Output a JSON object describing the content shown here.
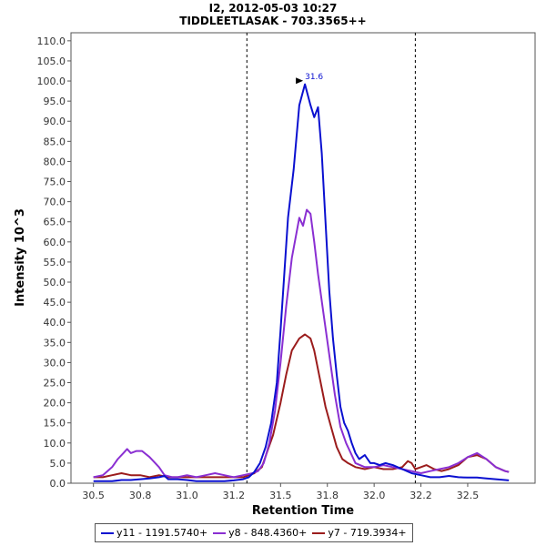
{
  "chart_data": {
    "type": "line",
    "title": "I2, 2012-05-03 10:27",
    "subtitle": "TIDDLEETLASAK - 703.3565++",
    "xlabel": "Retention Time",
    "ylabel": "Intensity 10^3",
    "xlim": [
      30.38,
      32.86
    ],
    "ylim": [
      0,
      112
    ],
    "x_ticks": [
      "30.5",
      "30.8",
      "31.0",
      "31.2",
      "31.5",
      "31.8",
      "32.0",
      "32.2",
      "32.5"
    ],
    "x_tick_values": [
      30.5,
      30.75,
      31.0,
      31.25,
      31.5,
      31.75,
      32.0,
      32.25,
      32.5
    ],
    "y_ticks": [
      "0.0",
      "5.0",
      "10.0",
      "15.0",
      "20.0",
      "25.0",
      "30.0",
      "35.0",
      "40.0",
      "45.0",
      "50.0",
      "55.0",
      "60.0",
      "65.0",
      "70.0",
      "75.0",
      "80.0",
      "85.0",
      "90.0",
      "95.0",
      "100.0",
      "105.0",
      "110.0"
    ],
    "y_tick_values": [
      0,
      5,
      10,
      15,
      20,
      25,
      30,
      35,
      40,
      45,
      50,
      55,
      60,
      65,
      70,
      75,
      80,
      85,
      90,
      95,
      100,
      105,
      110
    ],
    "boundaries": [
      31.32,
      32.22
    ],
    "peak_annotation": {
      "label": "31.6",
      "x": 31.64,
      "y": 99.5
    },
    "legend_position": "bottom",
    "series": [
      {
        "name": "y11 - 1191.5740+",
        "color": "#0a10d0",
        "points": [
          [
            30.5,
            0.5
          ],
          [
            30.55,
            0.5
          ],
          [
            30.6,
            0.5
          ],
          [
            30.65,
            0.8
          ],
          [
            30.7,
            0.8
          ],
          [
            30.75,
            1
          ],
          [
            30.8,
            1.2
          ],
          [
            30.85,
            1.5
          ],
          [
            30.88,
            1.8
          ],
          [
            30.9,
            1
          ],
          [
            30.95,
            1
          ],
          [
            31.0,
            0.8
          ],
          [
            31.05,
            0.5
          ],
          [
            31.1,
            0.5
          ],
          [
            31.15,
            0.5
          ],
          [
            31.2,
            0.5
          ],
          [
            31.25,
            0.7
          ],
          [
            31.3,
            1
          ],
          [
            31.33,
            1.5
          ],
          [
            31.36,
            2.8
          ],
          [
            31.39,
            5
          ],
          [
            31.42,
            9
          ],
          [
            31.45,
            15
          ],
          [
            31.48,
            25
          ],
          [
            31.5,
            38
          ],
          [
            31.52,
            52
          ],
          [
            31.54,
            66
          ],
          [
            31.57,
            78
          ],
          [
            31.6,
            94
          ],
          [
            31.63,
            99.2
          ],
          [
            31.66,
            94
          ],
          [
            31.68,
            91
          ],
          [
            31.7,
            93.5
          ],
          [
            31.72,
            82
          ],
          [
            31.74,
            65
          ],
          [
            31.76,
            48
          ],
          [
            31.78,
            36
          ],
          [
            31.8,
            27
          ],
          [
            31.82,
            19
          ],
          [
            31.84,
            15
          ],
          [
            31.86,
            13
          ],
          [
            31.88,
            10
          ],
          [
            31.9,
            7.5
          ],
          [
            31.92,
            6
          ],
          [
            31.95,
            7
          ],
          [
            31.98,
            5
          ],
          [
            32.0,
            5
          ],
          [
            32.03,
            4.5
          ],
          [
            32.06,
            5
          ],
          [
            32.1,
            4.5
          ],
          [
            32.15,
            3.5
          ],
          [
            32.2,
            2.5
          ],
          [
            32.25,
            2
          ],
          [
            32.3,
            1.5
          ],
          [
            32.35,
            1.5
          ],
          [
            32.4,
            1.8
          ],
          [
            32.45,
            1.5
          ],
          [
            32.5,
            1.4
          ],
          [
            32.55,
            1.4
          ],
          [
            32.6,
            1.2
          ],
          [
            32.65,
            1
          ],
          [
            32.7,
            0.8
          ],
          [
            32.72,
            0.7
          ]
        ]
      },
      {
        "name": "y8 - 848.4360+",
        "color": "#8a2fd2",
        "points": [
          [
            30.5,
            1.5
          ],
          [
            30.55,
            2
          ],
          [
            30.6,
            4
          ],
          [
            30.63,
            6
          ],
          [
            30.66,
            7.5
          ],
          [
            30.68,
            8.5
          ],
          [
            30.7,
            7.5
          ],
          [
            30.73,
            8
          ],
          [
            30.76,
            8
          ],
          [
            30.8,
            6.5
          ],
          [
            30.85,
            4
          ],
          [
            30.88,
            2
          ],
          [
            30.92,
            1.5
          ],
          [
            30.95,
            1.5
          ],
          [
            31.0,
            2
          ],
          [
            31.05,
            1.5
          ],
          [
            31.1,
            2
          ],
          [
            31.15,
            2.5
          ],
          [
            31.2,
            2
          ],
          [
            31.25,
            1.5
          ],
          [
            31.3,
            2
          ],
          [
            31.35,
            2.5
          ],
          [
            31.38,
            3
          ],
          [
            31.41,
            5
          ],
          [
            31.44,
            10
          ],
          [
            31.47,
            18
          ],
          [
            31.5,
            30
          ],
          [
            31.53,
            44
          ],
          [
            31.56,
            56
          ],
          [
            31.6,
            66
          ],
          [
            31.62,
            64
          ],
          [
            31.64,
            68
          ],
          [
            31.66,
            67
          ],
          [
            31.68,
            60
          ],
          [
            31.7,
            52
          ],
          [
            31.73,
            42
          ],
          [
            31.76,
            32
          ],
          [
            31.79,
            22
          ],
          [
            31.82,
            14
          ],
          [
            31.85,
            10
          ],
          [
            31.88,
            7
          ],
          [
            31.9,
            5
          ],
          [
            31.95,
            4
          ],
          [
            32.0,
            4
          ],
          [
            32.05,
            4.5
          ],
          [
            32.1,
            4
          ],
          [
            32.15,
            3.5
          ],
          [
            32.2,
            3
          ],
          [
            32.25,
            2.5
          ],
          [
            32.3,
            3
          ],
          [
            32.35,
            3.5
          ],
          [
            32.4,
            4
          ],
          [
            32.45,
            5
          ],
          [
            32.5,
            6.5
          ],
          [
            32.55,
            7.5
          ],
          [
            32.6,
            6
          ],
          [
            32.65,
            4
          ],
          [
            32.7,
            3
          ],
          [
            32.72,
            2.8
          ]
        ]
      },
      {
        "name": "y7 - 719.3934+",
        "color": "#9b1c1c",
        "points": [
          [
            30.5,
            1.5
          ],
          [
            30.55,
            1.5
          ],
          [
            30.6,
            2
          ],
          [
            30.65,
            2.5
          ],
          [
            30.7,
            2
          ],
          [
            30.75,
            2
          ],
          [
            30.8,
            1.5
          ],
          [
            30.85,
            2
          ],
          [
            30.9,
            1.5
          ],
          [
            30.95,
            1.5
          ],
          [
            31.0,
            1.5
          ],
          [
            31.05,
            1.5
          ],
          [
            31.1,
            1.5
          ],
          [
            31.15,
            1.5
          ],
          [
            31.2,
            1.5
          ],
          [
            31.25,
            1.5
          ],
          [
            31.3,
            1.5
          ],
          [
            31.33,
            2
          ],
          [
            31.36,
            2.5
          ],
          [
            31.4,
            4
          ],
          [
            31.43,
            8
          ],
          [
            31.46,
            12
          ],
          [
            31.5,
            20
          ],
          [
            31.53,
            27
          ],
          [
            31.56,
            33
          ],
          [
            31.6,
            36
          ],
          [
            31.63,
            37
          ],
          [
            31.66,
            36
          ],
          [
            31.68,
            33
          ],
          [
            31.71,
            26
          ],
          [
            31.74,
            19
          ],
          [
            31.77,
            14
          ],
          [
            31.8,
            9
          ],
          [
            31.83,
            6
          ],
          [
            31.86,
            5
          ],
          [
            31.9,
            4
          ],
          [
            31.95,
            3.5
          ],
          [
            32.0,
            4
          ],
          [
            32.05,
            3.5
          ],
          [
            32.1,
            3.5
          ],
          [
            32.15,
            4
          ],
          [
            32.18,
            5.5
          ],
          [
            32.2,
            5
          ],
          [
            32.22,
            3.5
          ],
          [
            32.25,
            4
          ],
          [
            32.28,
            4.5
          ],
          [
            32.32,
            3.5
          ],
          [
            32.36,
            3
          ],
          [
            32.4,
            3.5
          ],
          [
            32.45,
            4.5
          ],
          [
            32.5,
            6.5
          ],
          [
            32.55,
            7
          ],
          [
            32.6,
            6
          ],
          [
            32.65,
            4
          ],
          [
            32.7,
            3
          ],
          [
            32.72,
            2.8
          ]
        ]
      }
    ]
  }
}
